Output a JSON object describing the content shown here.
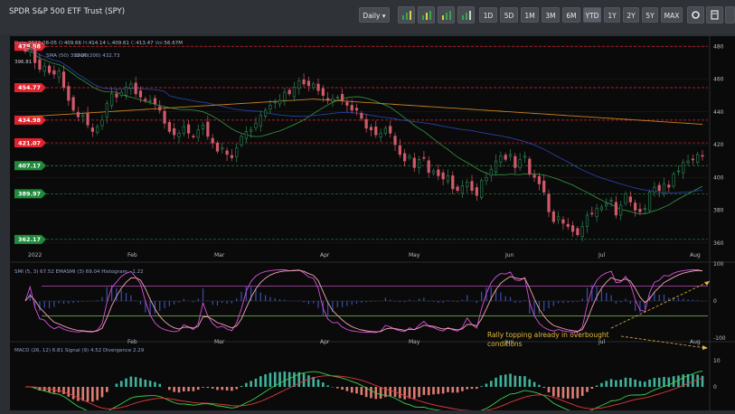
{
  "title": "SPDR S&P 500 ETF Trust (SPY)",
  "toolbar": {
    "interval_label": "Daily",
    "ranges": [
      "1D",
      "5D",
      "1M",
      "3M",
      "6M",
      "YTD",
      "1Y",
      "2Y",
      "5Y",
      "MAX"
    ],
    "active_range": "YTD",
    "icons": [
      "bar-daily-icon",
      "bar-weekly-icon",
      "bar-daily-alt-icon",
      "bar-monthly-icon"
    ],
    "right_icons": [
      "settings-icon",
      "calculator-icon",
      "fullscreen-icon"
    ]
  },
  "ohlc_legend": {
    "date_label": "Date:",
    "date": "2022-08-05",
    "o_label": "O:",
    "o": "409.66",
    "h_label": "H:",
    "h": "414.14",
    "l_label": "L:",
    "l": "409.61",
    "c_label": "C:",
    "c": "413.47",
    "v_label": "Vol:",
    "v": "56.67M"
  },
  "sma_legend": {
    "sma1_label": "SMA (50)",
    "sma1_value": "393.28",
    "sma2_label": "SMA (200)",
    "sma2_value": "432.73",
    "sma3_value": "396.81"
  },
  "smi_legend": {
    "label": "SMI (5, 3) 67.52 EMASMI (3) 69.04 Histogram: -1.22"
  },
  "macd_legend": {
    "label": "MACD (26, 12) 6.81 Signal (9) 4.52 Divergence 2.29"
  },
  "annotation": {
    "line1": "Rally topping already in overbought",
    "line2": "conditions"
  },
  "chart_data": {
    "type": "candlestick",
    "x_labels": [
      "2022",
      "Feb",
      "Mar",
      "Apr",
      "May",
      "Jun",
      "Jul",
      "Aug"
    ],
    "y_ticks": [
      480,
      460,
      440,
      420,
      400,
      380,
      360
    ],
    "y_range": [
      356,
      484
    ],
    "levels": [
      {
        "label": "479.98",
        "value": 479.98,
        "color": "#e0242f"
      },
      {
        "label": "454.77",
        "value": 454.77,
        "color": "#e0242f"
      },
      {
        "label": "434.98",
        "value": 434.98,
        "color": "#e0242f"
      },
      {
        "label": "421.07",
        "value": 421.07,
        "color": "#e0242f"
      },
      {
        "label": "407.17",
        "value": 407.17,
        "color": "#1f8a3a"
      },
      {
        "label": "389.97",
        "value": 389.97,
        "color": "#1f8a3a"
      },
      {
        "label": "362.17",
        "value": 362.17,
        "color": "#1f8a3a"
      }
    ],
    "closes": [
      477,
      478,
      470,
      466,
      468,
      464,
      463,
      465,
      455,
      447,
      441,
      437,
      438,
      432,
      428,
      431,
      435,
      445,
      451,
      449,
      452,
      455,
      457,
      451,
      449,
      447,
      447,
      445,
      441,
      433,
      428,
      426,
      427,
      431,
      427,
      425,
      429,
      432,
      425,
      421,
      416,
      418,
      414,
      412,
      418,
      425,
      428,
      429,
      433,
      438,
      441,
      444,
      446,
      447,
      452,
      451,
      455,
      459,
      457,
      456,
      457,
      453,
      450,
      447,
      448,
      449,
      447,
      444,
      441,
      441,
      436,
      430,
      429,
      426,
      427,
      430,
      427,
      420,
      414,
      410,
      413,
      406,
      411,
      412,
      403,
      404,
      401,
      399,
      401,
      393,
      392,
      395,
      397,
      392,
      389,
      398,
      400,
      405,
      410,
      413,
      411,
      414,
      406,
      411,
      413,
      402,
      400,
      396,
      391,
      379,
      373,
      376,
      372,
      370,
      367,
      365,
      370,
      377,
      378,
      381,
      382,
      384,
      386,
      377,
      383,
      390,
      385,
      380,
      379,
      381,
      391,
      394,
      392,
      396,
      394,
      402,
      404,
      409,
      410,
      411,
      414,
      413
    ],
    "smi_y_ticks": [
      100,
      0,
      -100
    ],
    "smi_levels": [
      40,
      -40
    ],
    "macd_y_ticks": [
      10,
      0,
      -10
    ]
  }
}
